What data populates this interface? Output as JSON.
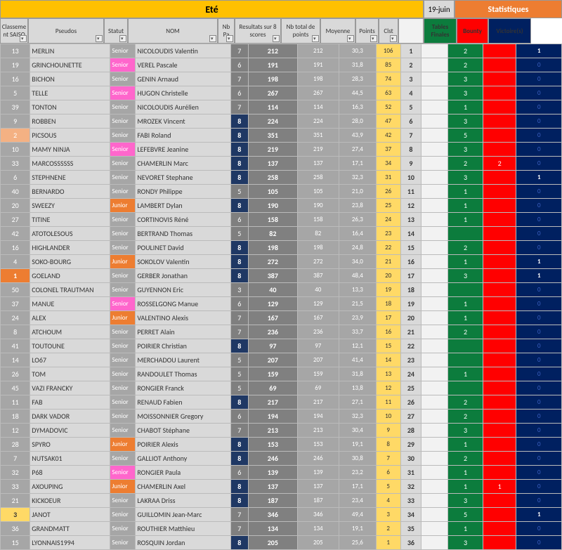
{
  "header": {
    "ete": "Eté",
    "date": "19-juin",
    "stats": "Statistiques"
  },
  "columns": {
    "classement": "Classeme nt SAISO",
    "pseudos": "Pseudos",
    "statut": "Statut",
    "nom": "NOM",
    "nb": "Nb Pa",
    "res8": "Resultats sur 8 scores",
    "total": "Nb total de points",
    "moyenne": "Moyenne",
    "points": "Points",
    "clst": "Clst",
    "tf": "Tables Finales",
    "bounty": "Bounty",
    "victoires": "Victoire(s)"
  },
  "colors": {
    "ete_bg": "#ffc000",
    "stats_bg": "#ed7d31",
    "tf_bg": "#0c7c3d",
    "bounty_bg": "#ff0000",
    "victoire_bg": "#002060",
    "senior_bg": "#a6a6a6",
    "senior_pink_bg": "#ff66cc",
    "junior_bg": "#ed7d31",
    "nb_max_bg": "#1f3864",
    "points_bg": "#ffd966"
  },
  "nb_max": 8,
  "rows": [
    {
      "classement": 13,
      "cl_style": "",
      "pseudo": "MERLIN",
      "statut": "Senior",
      "st": "senior",
      "nom": "NICOLOUDIS Valentin",
      "nb": 7,
      "res8": 212,
      "total": 212,
      "moy": "30,3",
      "pts": 106,
      "clst": 1,
      "tf": 2,
      "b": "",
      "v": 1
    },
    {
      "classement": 19,
      "cl_style": "",
      "pseudo": "GRINCHOUNETTE",
      "statut": "Senior",
      "st": "seniorp",
      "nom": "VEREL Pascale",
      "nb": 6,
      "res8": 191,
      "total": 191,
      "moy": "31,8",
      "pts": 85,
      "clst": 2,
      "tf": 2,
      "b": "",
      "v": 0
    },
    {
      "classement": 16,
      "cl_style": "",
      "pseudo": "BICHON",
      "statut": "Senior",
      "st": "senior",
      "nom": "GENIN Arnaud",
      "nb": 7,
      "res8": 198,
      "total": 198,
      "moy": "28,3",
      "pts": 74,
      "clst": 3,
      "tf": 3,
      "b": "",
      "v": 0
    },
    {
      "classement": 5,
      "cl_style": "",
      "pseudo": "TELLE",
      "statut": "Senior",
      "st": "seniorp",
      "nom": "HUGON Christelle",
      "nb": 6,
      "res8": 267,
      "total": 267,
      "moy": "44,5",
      "pts": 63,
      "clst": 4,
      "tf": 3,
      "b": "",
      "v": 0
    },
    {
      "classement": 39,
      "cl_style": "",
      "pseudo": "TONTON",
      "statut": "Senior",
      "st": "senior",
      "nom": "NICOLOUDIS Aurélien",
      "nb": 7,
      "res8": 114,
      "total": 114,
      "moy": "16,3",
      "pts": 52,
      "clst": 5,
      "tf": 1,
      "b": "",
      "v": 0
    },
    {
      "classement": 9,
      "cl_style": "",
      "pseudo": "ROBBEN",
      "statut": "Senior",
      "st": "senior",
      "nom": "MROZEK Vincent",
      "nb": 8,
      "res8": 224,
      "total": 224,
      "moy": "28,0",
      "pts": 47,
      "clst": 6,
      "tf": 3,
      "b": "",
      "v": 0
    },
    {
      "classement": 2,
      "cl_style": "o2",
      "pseudo": "PICSOUS",
      "statut": "Senior",
      "st": "senior",
      "nom": "FABI Roland",
      "nb": 8,
      "res8": 351,
      "total": 351,
      "moy": "43,9",
      "pts": 42,
      "clst": 7,
      "tf": 5,
      "b": "",
      "v": 0
    },
    {
      "classement": 10,
      "cl_style": "",
      "pseudo": "MAMY NINJA",
      "statut": "Senior",
      "st": "seniorp",
      "nom": "LEFEBVRE Jeanine",
      "nb": 8,
      "res8": 219,
      "total": 219,
      "moy": "27,4",
      "pts": 37,
      "clst": 8,
      "tf": 3,
      "b": "",
      "v": 0
    },
    {
      "classement": 33,
      "cl_style": "",
      "pseudo": "MARCOSSSSSS",
      "statut": "Senior",
      "st": "senior",
      "nom": "CHAMERLIN Marc",
      "nb": 8,
      "res8": 137,
      "total": 137,
      "moy": "17,1",
      "pts": 34,
      "clst": 9,
      "tf": 2,
      "b": 2,
      "v": 0
    },
    {
      "classement": 6,
      "cl_style": "",
      "pseudo": "STEPHNENE",
      "statut": "Senior",
      "st": "senior",
      "nom": "NEVORET Stephane",
      "nb": 8,
      "res8": 258,
      "total": 258,
      "moy": "32,3",
      "pts": 31,
      "clst": 10,
      "tf": 3,
      "b": "",
      "v": 1
    },
    {
      "classement": 40,
      "cl_style": "",
      "pseudo": "BERNARDO",
      "statut": "Senior",
      "st": "senior",
      "nom": "RONDY Philippe",
      "nb": 5,
      "res8": 105,
      "total": 105,
      "moy": "21,0",
      "pts": 26,
      "clst": 11,
      "tf": 1,
      "b": "",
      "v": 0
    },
    {
      "classement": 20,
      "cl_style": "",
      "pseudo": "SWEEZY",
      "statut": "Junior",
      "st": "junior",
      "nom": "LAMBERT Dylan",
      "nb": 8,
      "res8": 190,
      "total": 190,
      "moy": "23,8",
      "pts": 25,
      "clst": 12,
      "tf": 1,
      "b": "",
      "v": 0
    },
    {
      "classement": 27,
      "cl_style": "",
      "pseudo": "TITINE",
      "statut": "Senior",
      "st": "senior",
      "nom": "CORTINOVIS Réné",
      "nb": 6,
      "res8": 158,
      "total": 158,
      "moy": "26,3",
      "pts": 24,
      "clst": 13,
      "tf": 1,
      "b": "",
      "v": 0
    },
    {
      "classement": 42,
      "cl_style": "",
      "pseudo": "ATOTOLESOUS",
      "statut": "Senior",
      "st": "senior",
      "nom": "BERTRAND Thomas",
      "nb": 5,
      "res8": 82,
      "total": 82,
      "moy": "16,4",
      "pts": 23,
      "clst": 14,
      "tf": "",
      "b": "",
      "v": 0
    },
    {
      "classement": 16,
      "cl_style": "",
      "pseudo": "HIGHLANDER",
      "statut": "Senior",
      "st": "senior",
      "nom": "POULINET David",
      "nb": 8,
      "res8": 198,
      "total": 198,
      "moy": "24,8",
      "pts": 22,
      "clst": 15,
      "tf": 2,
      "b": "",
      "v": 0
    },
    {
      "classement": 4,
      "cl_style": "",
      "pseudo": "SOKO-BOURG",
      "statut": "Junior",
      "st": "junior",
      "nom": "SOKOLOV Valentin",
      "nb": 8,
      "res8": 272,
      "total": 272,
      "moy": "34,0",
      "pts": 21,
      "clst": 16,
      "tf": 1,
      "b": "",
      "v": 1
    },
    {
      "classement": 1,
      "cl_style": "o1",
      "pseudo": "GOELAND",
      "statut": "Senior",
      "st": "senior",
      "nom": "GERBER Jonathan",
      "nb": 8,
      "res8": 387,
      "total": 387,
      "moy": "48,4",
      "pts": 20,
      "clst": 17,
      "tf": 3,
      "b": "",
      "v": 1
    },
    {
      "classement": 50,
      "cl_style": "",
      "pseudo": "COLONEL TRAUTMAN",
      "statut": "Senior",
      "st": "senior",
      "nom": "GUYENNON Eric",
      "nb": 3,
      "res8": 40,
      "total": 40,
      "moy": "13,3",
      "pts": 19,
      "clst": 18,
      "tf": "",
      "b": "",
      "v": 0
    },
    {
      "classement": 37,
      "cl_style": "",
      "pseudo": "MANUE",
      "statut": "Senior",
      "st": "seniorp",
      "nom": "ROSSELGONG Manue",
      "nb": 6,
      "res8": 129,
      "total": 129,
      "moy": "21,5",
      "pts": 18,
      "clst": 19,
      "tf": 1,
      "b": "",
      "v": 0
    },
    {
      "classement": 24,
      "cl_style": "",
      "pseudo": "ALEX",
      "statut": "Junior",
      "st": "junior",
      "nom": "VALENTINO Alexis",
      "nb": 7,
      "res8": 167,
      "total": 167,
      "moy": "23,9",
      "pts": 17,
      "clst": 20,
      "tf": 1,
      "b": "",
      "v": 0
    },
    {
      "classement": 8,
      "cl_style": "",
      "pseudo": "ATCHOUM",
      "statut": "Senior",
      "st": "senior",
      "nom": "PERRET Alain",
      "nb": 7,
      "res8": 236,
      "total": 236,
      "moy": "33,7",
      "pts": 16,
      "clst": 21,
      "tf": 2,
      "b": "",
      "v": 0
    },
    {
      "classement": 41,
      "cl_style": "",
      "pseudo": "TOUTOUNE",
      "statut": "Senior",
      "st": "senior",
      "nom": "POIRIER Christian",
      "nb": 8,
      "res8": 97,
      "total": 97,
      "moy": "12,1",
      "pts": 15,
      "clst": 22,
      "tf": "",
      "b": "",
      "v": 0
    },
    {
      "classement": 14,
      "cl_style": "",
      "pseudo": "LO67",
      "statut": "Senior",
      "st": "senior",
      "nom": "MERCHADOU Laurent",
      "nb": 5,
      "res8": 207,
      "total": 207,
      "moy": "41,4",
      "pts": 14,
      "clst": 23,
      "tf": "",
      "b": "",
      "v": 0
    },
    {
      "classement": 26,
      "cl_style": "",
      "pseudo": "TOM",
      "statut": "Senior",
      "st": "senior",
      "nom": "RANDOULET Thomas",
      "nb": 5,
      "res8": 159,
      "total": 159,
      "moy": "31,8",
      "pts": 13,
      "clst": 24,
      "tf": 1,
      "b": "",
      "v": 0
    },
    {
      "classement": 45,
      "cl_style": "",
      "pseudo": "VAZI FRANCKY",
      "statut": "Senior",
      "st": "senior",
      "nom": "RONGIER Franck",
      "nb": 5,
      "res8": 69,
      "total": 69,
      "moy": "13,8",
      "pts": 12,
      "clst": 25,
      "tf": "",
      "b": "",
      "v": 0
    },
    {
      "classement": 11,
      "cl_style": "",
      "pseudo": "FAB",
      "statut": "Senior",
      "st": "senior",
      "nom": "RENAUD Fabien",
      "nb": 8,
      "res8": 217,
      "total": 217,
      "moy": "27,1",
      "pts": 11,
      "clst": 26,
      "tf": 2,
      "b": "",
      "v": 0
    },
    {
      "classement": 18,
      "cl_style": "",
      "pseudo": "DARK VADOR",
      "statut": "Senior",
      "st": "senior",
      "nom": "MOISSONNIER Gregory",
      "nb": 6,
      "res8": 194,
      "total": 194,
      "moy": "32,3",
      "pts": 10,
      "clst": 27,
      "tf": 2,
      "b": "",
      "v": 0
    },
    {
      "classement": 12,
      "cl_style": "",
      "pseudo": "DYMADOVIC",
      "statut": "Senior",
      "st": "senior",
      "nom": "CHABOT Stéphane",
      "nb": 7,
      "res8": 213,
      "total": 213,
      "moy": "30,4",
      "pts": 9,
      "clst": 28,
      "tf": 3,
      "b": "",
      "v": 0
    },
    {
      "classement": 28,
      "cl_style": "",
      "pseudo": "SPYRO",
      "statut": "Junior",
      "st": "junior",
      "nom": "POIRIER Alexis",
      "nb": 8,
      "res8": 153,
      "total": 153,
      "moy": "19,1",
      "pts": 8,
      "clst": 29,
      "tf": 1,
      "b": "",
      "v": 0
    },
    {
      "classement": 7,
      "cl_style": "",
      "pseudo": "NUTSAK01",
      "statut": "Senior",
      "st": "senior",
      "nom": "GALLIOT Anthony",
      "nb": 8,
      "res8": 246,
      "total": 246,
      "moy": "30,8",
      "pts": 7,
      "clst": 30,
      "tf": 2,
      "b": "",
      "v": 0
    },
    {
      "classement": 32,
      "cl_style": "",
      "pseudo": "P68",
      "statut": "Senior",
      "st": "seniorp",
      "nom": "RONGIER Paula",
      "nb": 6,
      "res8": 139,
      "total": 139,
      "moy": "23,2",
      "pts": 6,
      "clst": 31,
      "tf": 1,
      "b": "",
      "v": 0
    },
    {
      "classement": 33,
      "cl_style": "",
      "pseudo": "AXOUPING",
      "statut": "Junior",
      "st": "junior",
      "nom": "CHAMERLIN Axel",
      "nb": 8,
      "res8": 137,
      "total": 137,
      "moy": "17,1",
      "pts": 5,
      "clst": 32,
      "tf": 1,
      "b": 1,
      "v": 0
    },
    {
      "classement": 21,
      "cl_style": "",
      "pseudo": "KICKOEUR",
      "statut": "Senior",
      "st": "senior",
      "nom": "LAKRAA Driss",
      "nb": 8,
      "res8": 187,
      "total": 187,
      "moy": "23,4",
      "pts": 4,
      "clst": 33,
      "tf": 3,
      "b": "",
      "v": 0
    },
    {
      "classement": 3,
      "cl_style": "y",
      "pseudo": "JANOT",
      "statut": "Senior",
      "st": "senior",
      "nom": "GUILLOMIN Jean-Marc",
      "nb": 7,
      "res8": 346,
      "total": 346,
      "moy": "49,4",
      "pts": 3,
      "clst": 34,
      "tf": 5,
      "b": "",
      "v": 1
    },
    {
      "classement": 36,
      "cl_style": "",
      "pseudo": "GRANDMATT",
      "statut": "Senior",
      "st": "senior",
      "nom": "ROUTHIER Matthieu",
      "nb": 7,
      "res8": 134,
      "total": 134,
      "moy": "19,1",
      "pts": 2,
      "clst": 35,
      "tf": 1,
      "b": "",
      "v": 0
    },
    {
      "classement": 15,
      "cl_style": "",
      "pseudo": "LYONNAIS1994",
      "statut": "Senior",
      "st": "senior",
      "nom": "ROSQUIN Jordan",
      "nb": 8,
      "res8": 205,
      "total": 205,
      "moy": "25,6",
      "pts": 1,
      "clst": 36,
      "tf": 3,
      "b": "",
      "v": 0
    }
  ]
}
